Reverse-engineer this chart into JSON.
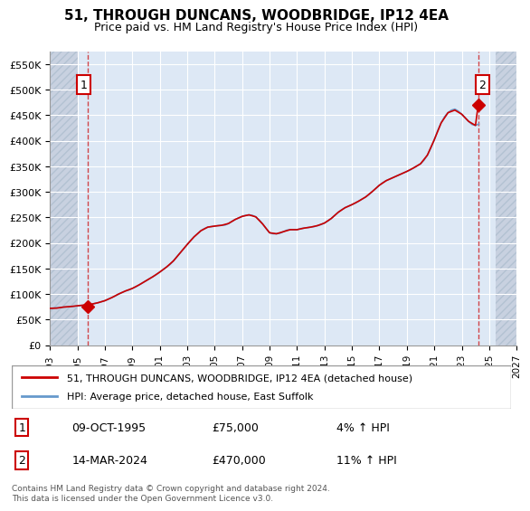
{
  "title": "51, THROUGH DUNCANS, WOODBRIDGE, IP12 4EA",
  "subtitle": "Price paid vs. HM Land Registry's House Price Index (HPI)",
  "legend_line1": "51, THROUGH DUNCANS, WOODBRIDGE, IP12 4EA (detached house)",
  "legend_line2": "HPI: Average price, detached house, East Suffolk",
  "annotation1_label": "1",
  "annotation1_date": "09-OCT-1995",
  "annotation1_price": "£75,000",
  "annotation1_hpi": "4% ↑ HPI",
  "annotation2_label": "2",
  "annotation2_date": "14-MAR-2024",
  "annotation2_price": "£470,000",
  "annotation2_hpi": "11% ↑ HPI",
  "footnote": "Contains HM Land Registry data © Crown copyright and database right 2024.\nThis data is licensed under the Open Government Licence v3.0.",
  "sale1_year": 1995.77,
  "sale1_price": 75000,
  "sale2_year": 2024.2,
  "sale2_price": 470000,
  "xlim": [
    1993,
    2027
  ],
  "ylim": [
    0,
    575000
  ],
  "yticks": [
    0,
    50000,
    100000,
    150000,
    200000,
    250000,
    300000,
    350000,
    400000,
    450000,
    500000,
    550000
  ],
  "ytick_labels": [
    "£0",
    "£50K",
    "£100K",
    "£150K",
    "£200K",
    "£250K",
    "£300K",
    "£350K",
    "£400K",
    "£450K",
    "£500K",
    "£550K"
  ],
  "xticks": [
    1993,
    1995,
    1997,
    1999,
    2001,
    2003,
    2005,
    2007,
    2009,
    2011,
    2013,
    2015,
    2017,
    2019,
    2021,
    2023,
    2025,
    2027
  ],
  "plot_bg_color": "#dde8f5",
  "hatch_color": "#c0c8d8",
  "grid_color": "#ffffff",
  "red_line_color": "#cc0000",
  "blue_line_color": "#6699cc",
  "sale_marker_color": "#cc0000",
  "annotation_box_color": "#cc0000",
  "hpi_years": [
    1993.0,
    1993.25,
    1993.5,
    1993.75,
    1994.0,
    1994.25,
    1994.5,
    1994.75,
    1995.0,
    1995.25,
    1995.5,
    1995.75,
    1996.0,
    1996.25,
    1996.5,
    1996.75,
    1997.0,
    1997.25,
    1997.5,
    1997.75,
    1998.0,
    1998.25,
    1998.5,
    1998.75,
    1999.0,
    1999.25,
    1999.5,
    1999.75,
    2000.0,
    2000.25,
    2000.5,
    2000.75,
    2001.0,
    2001.25,
    2001.5,
    2001.75,
    2002.0,
    2002.25,
    2002.5,
    2002.75,
    2003.0,
    2003.25,
    2003.5,
    2003.75,
    2004.0,
    2004.25,
    2004.5,
    2004.75,
    2005.0,
    2005.25,
    2005.5,
    2005.75,
    2006.0,
    2006.25,
    2006.5,
    2006.75,
    2007.0,
    2007.25,
    2007.5,
    2007.75,
    2008.0,
    2008.25,
    2008.5,
    2008.75,
    2009.0,
    2009.25,
    2009.5,
    2009.75,
    2010.0,
    2010.25,
    2010.5,
    2010.75,
    2011.0,
    2011.25,
    2011.5,
    2011.75,
    2012.0,
    2012.25,
    2012.5,
    2012.75,
    2013.0,
    2013.25,
    2013.5,
    2013.75,
    2014.0,
    2014.25,
    2014.5,
    2014.75,
    2015.0,
    2015.25,
    2015.5,
    2015.75,
    2016.0,
    2016.25,
    2016.5,
    2016.75,
    2017.0,
    2017.25,
    2017.5,
    2017.75,
    2018.0,
    2018.25,
    2018.5,
    2018.75,
    2019.0,
    2019.25,
    2019.5,
    2019.75,
    2020.0,
    2020.25,
    2020.5,
    2020.75,
    2021.0,
    2021.25,
    2021.5,
    2021.75,
    2022.0,
    2022.25,
    2022.5,
    2022.75,
    2023.0,
    2023.25,
    2023.5,
    2023.75,
    2024.0,
    2024.25
  ],
  "hpi_values": [
    72000,
    72500,
    73000,
    73500,
    74500,
    75000,
    75500,
    76000,
    77000,
    77500,
    78000,
    79000,
    80000,
    81500,
    83000,
    85000,
    87000,
    90000,
    93000,
    96000,
    100000,
    103000,
    106000,
    108000,
    111000,
    114000,
    118000,
    122000,
    126000,
    130000,
    134000,
    138000,
    143000,
    148000,
    153000,
    158000,
    165000,
    173000,
    181000,
    189000,
    197000,
    205000,
    212000,
    218000,
    224000,
    228000,
    231000,
    232000,
    233000,
    234000,
    234500,
    235000,
    238000,
    242000,
    246000,
    249000,
    252000,
    254000,
    255000,
    254000,
    251000,
    245000,
    237000,
    228000,
    220000,
    218000,
    218000,
    219000,
    222000,
    225000,
    226000,
    226000,
    226000,
    228000,
    229000,
    230000,
    231000,
    232000,
    234000,
    236000,
    239000,
    243000,
    248000,
    254000,
    260000,
    265000,
    269000,
    272000,
    275000,
    278000,
    282000,
    286000,
    290000,
    295000,
    301000,
    307000,
    313000,
    318000,
    322000,
    325000,
    328000,
    331000,
    334000,
    337000,
    340000,
    343000,
    347000,
    351000,
    355000,
    362000,
    372000,
    386000,
    402000,
    420000,
    435000,
    447000,
    455000,
    460000,
    462000,
    458000,
    452000,
    445000,
    438000,
    432000,
    430000,
    433000
  ],
  "price_years": [
    1993.0,
    1993.5,
    1994.0,
    1994.5,
    1995.0,
    1995.5,
    1995.77,
    1996.0,
    1996.5,
    1997.0,
    1997.5,
    1998.0,
    1998.5,
    1999.0,
    1999.5,
    2000.0,
    2000.5,
    2001.0,
    2001.5,
    2002.0,
    2002.5,
    2003.0,
    2003.5,
    2004.0,
    2004.5,
    2005.0,
    2005.5,
    2006.0,
    2006.5,
    2007.0,
    2007.5,
    2008.0,
    2008.5,
    2009.0,
    2009.5,
    2010.0,
    2010.5,
    2011.0,
    2011.5,
    2012.0,
    2012.5,
    2013.0,
    2013.5,
    2014.0,
    2014.5,
    2015.0,
    2015.5,
    2016.0,
    2016.5,
    2017.0,
    2017.5,
    2018.0,
    2018.5,
    2019.0,
    2019.5,
    2020.0,
    2020.5,
    2021.0,
    2021.5,
    2022.0,
    2022.5,
    2023.0,
    2023.5,
    2024.0,
    2024.2
  ],
  "price_values": [
    72000,
    72500,
    74500,
    75500,
    77000,
    78500,
    75000,
    80000,
    83000,
    87000,
    93000,
    100000,
    106000,
    111000,
    118000,
    126000,
    134000,
    143000,
    153000,
    165000,
    181000,
    197000,
    212000,
    224000,
    231000,
    233000,
    234500,
    238000,
    246000,
    252000,
    255000,
    251000,
    237000,
    220000,
    218000,
    222000,
    226000,
    226000,
    229000,
    231000,
    234000,
    239000,
    248000,
    260000,
    269000,
    275000,
    282000,
    290000,
    301000,
    313000,
    322000,
    328000,
    334000,
    340000,
    347000,
    355000,
    372000,
    402000,
    435000,
    455000,
    460000,
    452000,
    438000,
    430000,
    470000
  ]
}
